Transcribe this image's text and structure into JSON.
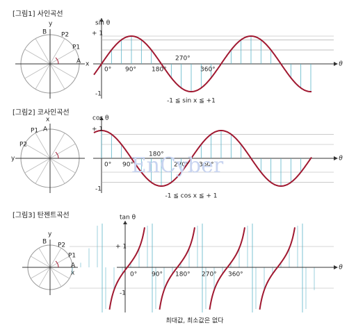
{
  "panels": [
    {
      "title": "[그림1] 사인곡선",
      "func_label": "sin θ",
      "plus_one": "+ 1",
      "minus_one": "-1",
      "circle_labels": {
        "y": "y",
        "b": "B",
        "p2": "P2",
        "p1": "P1",
        "a": "A",
        "x": "x"
      },
      "angles": [
        "0°",
        "90°",
        "180°",
        "270°",
        "360°"
      ],
      "theta": "θ",
      "caption": "-1 ≦  sin x  ≦ +1"
    },
    {
      "title": "[그림2] 코사인곡선",
      "func_label": "cos θ",
      "plus_one": "+ 1",
      "minus_one": "-1",
      "circle_labels": {
        "x": "x",
        "a": "A",
        "p1": "P1",
        "p2": "P2",
        "y": "y"
      },
      "angles": [
        "0°",
        "90°",
        "180°",
        "270°",
        "360°"
      ],
      "theta": "θ",
      "caption": "-1 ≦ cos x  ≦ + 1"
    },
    {
      "title": "[그림3] 탄젠트곡선",
      "func_label": "tan θ",
      "plus_one": "+ 1",
      "minus_one": "-1",
      "circle_labels": {
        "y": "y",
        "b": "B",
        "p2": "P2",
        "p1": "P1",
        "a": "A",
        "x": "x"
      },
      "angles": [
        "0°",
        "90°",
        "180°",
        "270°",
        "360°"
      ],
      "theta": "θ",
      "caption": "최대값, 최소값은 없다"
    }
  ],
  "watermark": "EnCyber"
}
